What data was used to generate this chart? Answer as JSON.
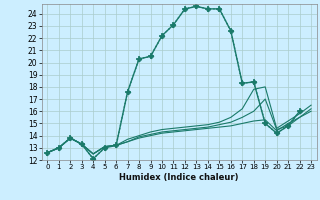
{
  "xlabel": "Humidex (Indice chaleur)",
  "bg_color": "#cceeff",
  "grid_color": "#aacccc",
  "line_color": "#1a7a6a",
  "xlim": [
    -0.5,
    23.5
  ],
  "ylim": [
    12,
    24.8
  ],
  "xticks": [
    0,
    1,
    2,
    3,
    4,
    5,
    6,
    7,
    8,
    9,
    10,
    11,
    12,
    13,
    14,
    15,
    16,
    17,
    18,
    19,
    20,
    21,
    22,
    23
  ],
  "yticks": [
    12,
    13,
    14,
    15,
    16,
    17,
    18,
    19,
    20,
    21,
    22,
    23,
    24
  ],
  "lines": [
    {
      "x": [
        0,
        1,
        2,
        3,
        4,
        5,
        6,
        7,
        8,
        9,
        10,
        11,
        12,
        13,
        14,
        15,
        16,
        17,
        18,
        19,
        20,
        21,
        22
      ],
      "y": [
        12.6,
        13.0,
        13.8,
        13.3,
        12.1,
        13.0,
        13.2,
        17.6,
        20.3,
        20.5,
        22.2,
        23.1,
        24.4,
        24.6,
        24.4,
        24.4,
        22.6,
        18.3,
        18.4,
        15.0,
        14.2,
        14.8,
        16.0
      ],
      "style": ":",
      "marker": "+",
      "markersize": 4,
      "linewidth": 1.0,
      "markeredgewidth": 1.2
    },
    {
      "x": [
        0,
        1,
        2,
        3,
        4,
        5,
        6,
        7,
        8,
        9,
        10,
        11,
        12,
        13,
        14,
        15,
        16,
        17,
        18,
        19,
        20,
        21,
        22
      ],
      "y": [
        12.6,
        13.0,
        13.8,
        13.3,
        12.1,
        13.0,
        13.2,
        17.6,
        20.3,
        20.5,
        22.2,
        23.1,
        24.4,
        24.6,
        24.4,
        24.4,
        22.6,
        18.3,
        18.4,
        15.0,
        14.2,
        14.8,
        16.0
      ],
      "style": "-",
      "marker": "D",
      "markersize": 2.5,
      "linewidth": 1.0,
      "markeredgewidth": 0.5
    },
    {
      "x": [
        0,
        1,
        2,
        3,
        4,
        5,
        6,
        7,
        8,
        9,
        10,
        11,
        12,
        13,
        14,
        15,
        16,
        17,
        18,
        19,
        20,
        21,
        22,
        23
      ],
      "y": [
        12.6,
        13.0,
        13.8,
        13.3,
        12.5,
        13.1,
        13.2,
        13.5,
        13.8,
        14.0,
        14.2,
        14.3,
        14.4,
        14.5,
        14.6,
        14.7,
        14.8,
        15.0,
        15.2,
        15.3,
        14.4,
        15.0,
        15.5,
        16.0
      ],
      "style": "-",
      "marker": null,
      "markersize": 2,
      "linewidth": 0.8,
      "markeredgewidth": 0.5
    },
    {
      "x": [
        0,
        1,
        2,
        3,
        4,
        5,
        6,
        7,
        8,
        9,
        10,
        11,
        12,
        13,
        14,
        15,
        16,
        17,
        18,
        19,
        20,
        21,
        22,
        23
      ],
      "y": [
        12.6,
        13.0,
        13.8,
        13.3,
        12.5,
        13.1,
        13.2,
        13.5,
        13.9,
        14.1,
        14.3,
        14.4,
        14.5,
        14.6,
        14.7,
        14.9,
        15.1,
        15.5,
        16.0,
        17.0,
        14.5,
        14.8,
        15.5,
        16.2
      ],
      "style": "-",
      "marker": null,
      "markersize": 2,
      "linewidth": 0.8,
      "markeredgewidth": 0.5
    },
    {
      "x": [
        0,
        1,
        2,
        3,
        4,
        5,
        6,
        7,
        8,
        9,
        10,
        11,
        12,
        13,
        14,
        15,
        16,
        17,
        18,
        19,
        20,
        21,
        22,
        23
      ],
      "y": [
        12.6,
        13.0,
        13.8,
        13.3,
        12.5,
        13.1,
        13.2,
        13.7,
        14.0,
        14.3,
        14.5,
        14.6,
        14.7,
        14.8,
        14.9,
        15.1,
        15.5,
        16.2,
        17.8,
        18.0,
        14.6,
        15.2,
        15.8,
        16.5
      ],
      "style": "-",
      "marker": null,
      "markersize": 2,
      "linewidth": 0.8,
      "markeredgewidth": 0.5
    }
  ]
}
